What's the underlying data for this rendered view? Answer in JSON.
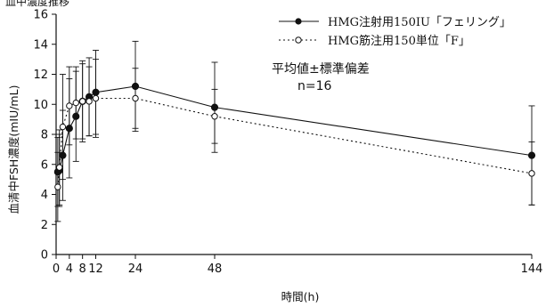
{
  "top_fragment": "血中濃度推移",
  "chart_data": {
    "type": "line",
    "xlabel": "時間(h)",
    "ylabel": "血清中FSH濃度(mIU/mL)",
    "xlim": [
      0,
      144
    ],
    "ylim": [
      0,
      16
    ],
    "x_ticks": [
      0,
      4,
      8,
      12,
      24,
      48,
      144
    ],
    "y_ticks": [
      0,
      2,
      4,
      6,
      8,
      10,
      12,
      14,
      16
    ],
    "grid": false,
    "legend_position": "top-right",
    "annotations": [
      "平均値±標準偏差",
      "n=16"
    ],
    "series": [
      {
        "name": "HMG注射用150IU「フェリング」",
        "marker": "filled-circle",
        "line_style": "solid",
        "color": "#111111",
        "x": [
          0.5,
          1,
          2,
          4,
          6,
          8,
          10,
          12,
          24,
          48,
          144
        ],
        "y": [
          5.5,
          5.6,
          6.6,
          8.4,
          9.2,
          10.2,
          10.5,
          10.8,
          11.2,
          9.8,
          6.6
        ],
        "err": [
          2.3,
          2.4,
          3.0,
          3.3,
          3.0,
          2.7,
          2.6,
          2.8,
          3.0,
          3.0,
          3.3
        ]
      },
      {
        "name": "HMG筋注用150単位「F」",
        "marker": "open-circle",
        "line_style": "dotted",
        "color": "#111111",
        "x": [
          0.5,
          1,
          2,
          4,
          6,
          8,
          10,
          12,
          24,
          48,
          144
        ],
        "y": [
          4.5,
          5.8,
          8.5,
          9.9,
          10.1,
          10.2,
          10.2,
          10.4,
          10.4,
          9.2,
          5.4
        ],
        "err": [
          2.3,
          2.5,
          3.5,
          2.6,
          2.4,
          2.5,
          2.3,
          2.6,
          2.0,
          1.8,
          2.1
        ]
      }
    ]
  }
}
